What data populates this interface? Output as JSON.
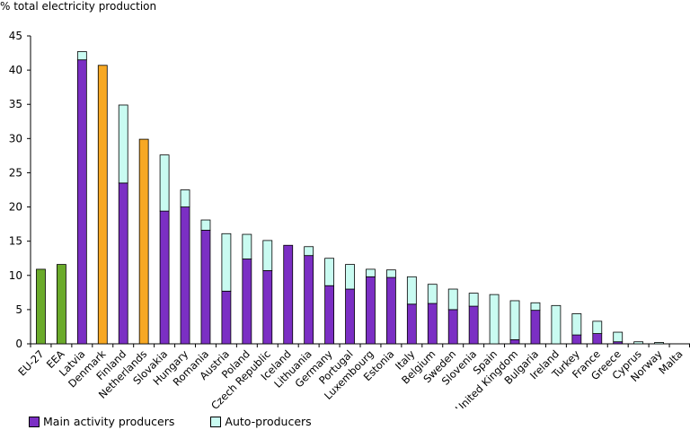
{
  "chart_data": {
    "type": "bar",
    "ylabel": "% total electricity production",
    "xlabel": "",
    "ylim": [
      0,
      45
    ],
    "yticks": [
      0,
      5,
      10,
      15,
      20,
      25,
      30,
      35,
      40,
      45
    ],
    "grid": false,
    "legend_position": "bottom-left",
    "categories": [
      "EU-27",
      "EEA",
      "Latvia",
      "Denmark",
      "Finland",
      "Netherlands",
      "Slovakia",
      "Hungary",
      "Romania",
      "Austria",
      "Poland",
      "Czech Republic",
      "Iceland",
      "Lithuania",
      "Germany",
      "Portugal",
      "Luxembourg",
      "Estonia",
      "Italy",
      "Belgium",
      "Sweden",
      "Slovenia",
      "Spain",
      "United Kingdom",
      "Bulgaria",
      "Ireland",
      "Turkey",
      "France",
      "Greece",
      "Cyprus",
      "Norway",
      "Malta"
    ],
    "aggregate_bars": {
      "EU-27": {
        "value": 10.9,
        "color": "#6aaa2a"
      },
      "EEA": {
        "value": 11.6,
        "color": "#6aaa2a"
      },
      "Denmark": {
        "value": 40.7,
        "color": "#f7a823"
      },
      "Netherlands": {
        "value": 29.9,
        "color": "#f7a823"
      }
    },
    "series": [
      {
        "name": "Main activity producers",
        "color": "#7b2fc4",
        "values": [
          null,
          null,
          41.5,
          null,
          23.5,
          null,
          19.4,
          20.0,
          16.6,
          7.7,
          12.4,
          10.7,
          14.4,
          12.9,
          8.5,
          8.0,
          9.8,
          9.7,
          5.8,
          5.9,
          5.0,
          5.5,
          0.0,
          0.6,
          4.9,
          0.0,
          1.3,
          1.5,
          0.3,
          0.0,
          0.0,
          0.0
        ]
      },
      {
        "name": "Auto-producers",
        "color": "#c9fbf1",
        "values": [
          null,
          null,
          1.2,
          null,
          11.4,
          null,
          8.2,
          2.5,
          1.5,
          8.4,
          3.6,
          4.4,
          0.0,
          1.3,
          4.0,
          3.6,
          1.1,
          1.1,
          4.0,
          2.8,
          3.0,
          1.9,
          7.2,
          5.7,
          1.1,
          5.6,
          3.1,
          1.8,
          1.4,
          0.3,
          0.2,
          0.0
        ]
      }
    ]
  }
}
